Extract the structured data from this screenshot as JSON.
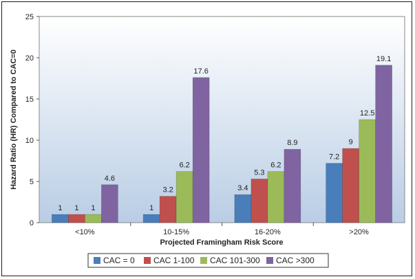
{
  "chart_data": {
    "type": "bar",
    "title": "",
    "xlabel": "Projected Framingham Risk Score",
    "ylabel": "Hazard Ratio (HR) Compared to CAC=0",
    "ylim": [
      0,
      25
    ],
    "yticks": [
      0,
      5,
      10,
      15,
      20,
      25
    ],
    "categories": [
      "<10%",
      "10-15%",
      "16-20%",
      ">20%"
    ],
    "series": [
      {
        "name": "CAC = 0",
        "color": "#4a7ebb",
        "values": [
          1,
          1,
          3.4,
          7.2
        ],
        "labels": [
          "1",
          "1",
          "3.4",
          "7.2"
        ]
      },
      {
        "name": "CAC 1-100",
        "color": "#c0504d",
        "values": [
          1,
          3.2,
          5.3,
          9
        ],
        "labels": [
          "1",
          "3.2",
          "5.3",
          "9"
        ]
      },
      {
        "name": "CAC 101-300",
        "color": "#9bbb59",
        "values": [
          1,
          6.2,
          6.2,
          12.5
        ],
        "labels": [
          "1",
          "6.2",
          "6.2",
          "12.5"
        ]
      },
      {
        "name": "CAC >300",
        "color": "#8064a2",
        "values": [
          4.6,
          17.6,
          8.9,
          19.1
        ],
        "labels": [
          "4.6",
          "17.6",
          "8.9",
          "19.1"
        ]
      }
    ],
    "grid": false,
    "legend_position": "bottom"
  }
}
